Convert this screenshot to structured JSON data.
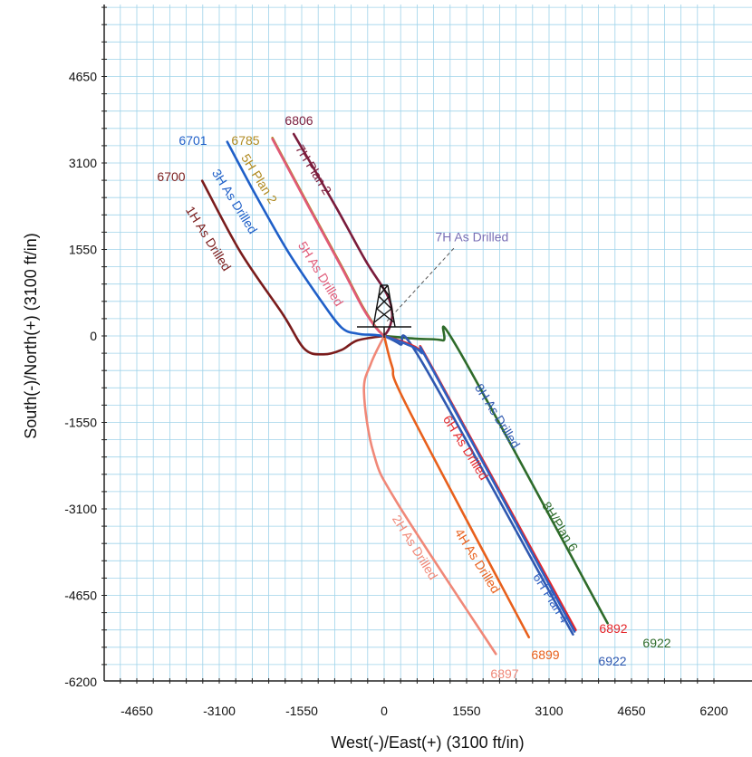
{
  "chart_data": {
    "type": "line",
    "xlabel": "West(-)/East(+) (3100 ft/in)",
    "ylabel": "South(-)/North(+) (3100 ft/in)",
    "xlim": [
      -5600,
      6450
    ],
    "ylim": [
      -6200,
      5900
    ],
    "xticks": [
      "-4650",
      "-3100",
      "-1550",
      "0",
      "1550",
      "3100",
      "4650",
      "6200"
    ],
    "yticks": [
      "4650",
      "3100",
      "1550",
      "0",
      "-1550",
      "-3100",
      "-4650",
      "-6200"
    ],
    "grid": true,
    "series": [
      {
        "name": "1H As Drilled",
        "color": "#7a1c1c",
        "end_label": "6700",
        "label_angle": 58,
        "x": [
          -3420,
          -2700,
          -1900,
          -1500,
          -1150,
          -800,
          -500,
          0
        ],
        "y": [
          2780,
          1500,
          380,
          -230,
          -330,
          -250,
          -80,
          0
        ]
      },
      {
        "name": "3H As Drilled",
        "color": "#1f5fc8",
        "end_label": "6701",
        "label_angle": 58,
        "x": [
          -2950,
          -2400,
          -1800,
          -1200,
          -800,
          -500,
          -200,
          0
        ],
        "y": [
          3480,
          2500,
          1500,
          650,
          150,
          40,
          20,
          0
        ]
      },
      {
        "name": "5H Plan 2",
        "color": "#b08a20",
        "end_label": "6785",
        "label_angle": 58,
        "x": [
          -2100,
          -1400,
          -800,
          -400,
          -150,
          0
        ],
        "y": [
          3550,
          2300,
          1250,
          520,
          150,
          0
        ]
      },
      {
        "name": "5H As Drilled",
        "color": "#e05a78",
        "end_label": "",
        "label_angle": 58,
        "x": [
          -2100,
          -1400,
          -800,
          -400,
          -150,
          0
        ],
        "y": [
          3530,
          2280,
          1230,
          500,
          140,
          0
        ]
      },
      {
        "name": "7H Plan 2",
        "color": "#7a1c3c",
        "end_label": "6806",
        "label_angle": 58,
        "x": [
          -1700,
          -900,
          -350,
          50,
          150,
          100,
          0
        ],
        "y": [
          3620,
          2300,
          1350,
          750,
          400,
          150,
          0
        ]
      },
      {
        "name": "8H/Plan 6",
        "color": "#2e6b2a",
        "end_label": "6922",
        "label_angle": 58,
        "x": [
          0,
          600,
          1100,
          1400,
          4200
        ],
        "y": [
          0,
          -50,
          -80,
          -250,
          -5150
        ]
      },
      {
        "name": "8H As Drilled",
        "color": "#2f58b0",
        "end_label": "6922",
        "label_angle": 58,
        "x": [
          0,
          300,
          700,
          3550
        ],
        "y": [
          0,
          -150,
          -450,
          -5350
        ]
      },
      {
        "name": "6H As Drilled",
        "color": "#e5262a",
        "end_label": "6892",
        "label_angle": 58,
        "x": [
          0,
          400,
          700,
          950,
          3600
        ],
        "y": [
          0,
          -120,
          -280,
          -650,
          -5270
        ]
      },
      {
        "name": "6H Plan 4",
        "color": "#2f5fc0",
        "end_label": "",
        "label_angle": 58,
        "x": [
          0,
          400,
          700,
          950,
          3580
        ],
        "y": [
          0,
          -140,
          -300,
          -670,
          -5300
        ]
      },
      {
        "name": "4H As Drilled",
        "color": "#e8601c",
        "end_label": "6899",
        "label_angle": 58,
        "x": [
          0,
          150,
          450,
          2720
        ],
        "y": [
          0,
          -550,
          -1300,
          -5400
        ]
      },
      {
        "name": "2H As Drilled",
        "color": "#f08878",
        "end_label": "6897",
        "label_angle": 58,
        "x": [
          0,
          -250,
          -380,
          -200,
          250,
          2100
        ],
        "y": [
          0,
          -500,
          -1000,
          -2100,
          -3000,
          -5700
        ]
      }
    ],
    "annotations": [
      {
        "text": "7H As Drilled",
        "color": "#7a6fb5",
        "x": 1650,
        "y": 1700
      }
    ]
  }
}
